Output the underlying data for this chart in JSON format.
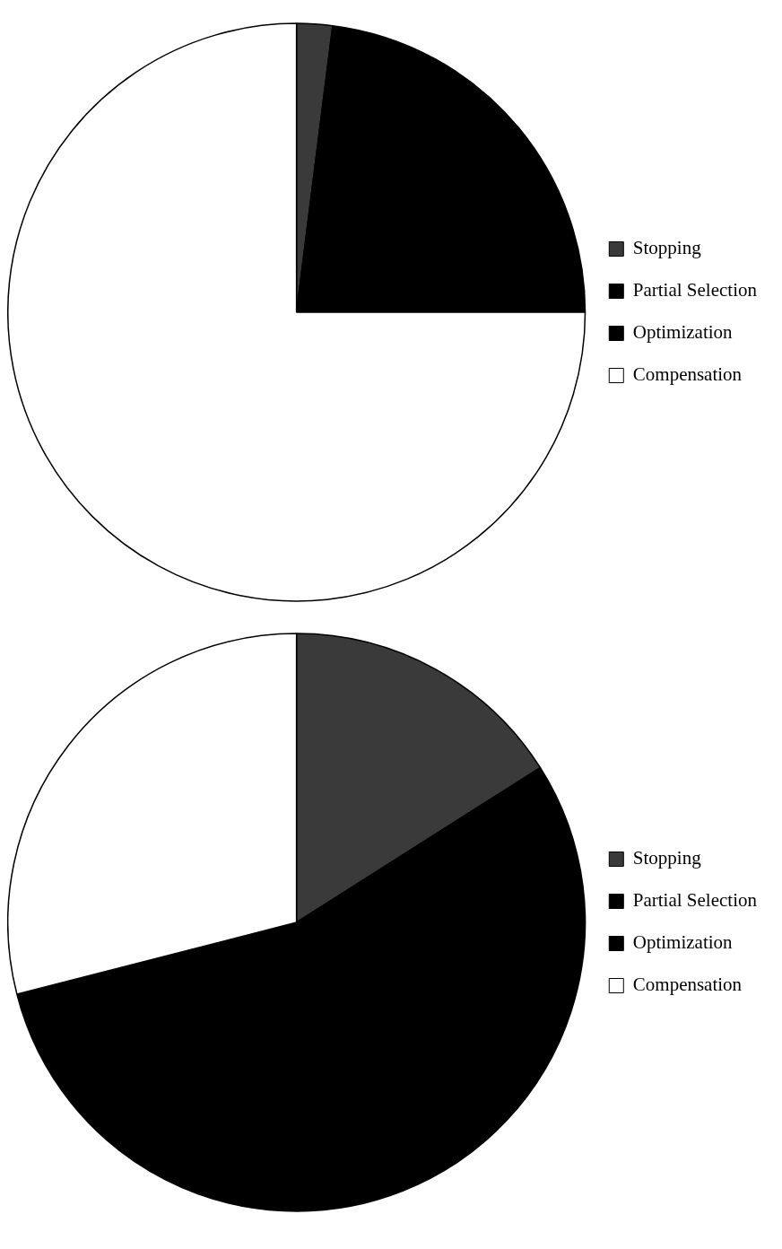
{
  "chart_data": [
    {
      "type": "pie",
      "categories": [
        "Stopping",
        "Partial Selection",
        "Optimization",
        "Compensation"
      ],
      "values": [
        2,
        12,
        11,
        75
      ],
      "colors": [
        "#3a3a3a",
        "#000000",
        "#000000",
        "#ffffff"
      ],
      "legend": "right"
    },
    {
      "type": "pie",
      "categories": [
        "Stopping",
        "Partial Selection",
        "Optimization",
        "Compensation"
      ],
      "values": [
        16,
        28,
        27,
        29
      ],
      "colors": [
        "#3a3a3a",
        "#000000",
        "#000000",
        "#ffffff"
      ],
      "legend": "right"
    }
  ]
}
